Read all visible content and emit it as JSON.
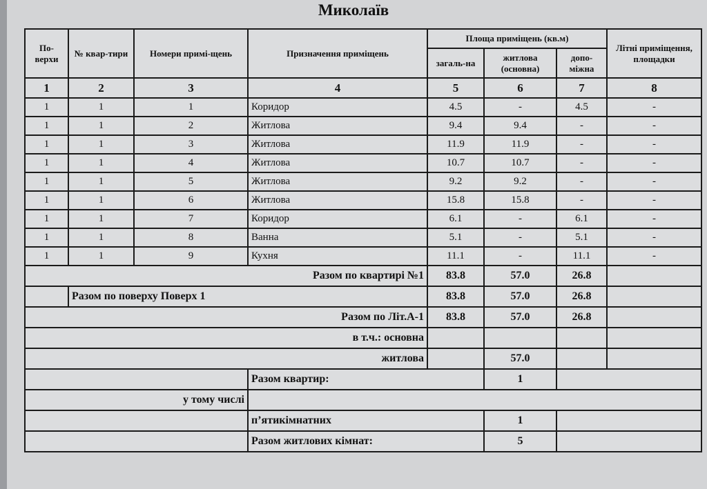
{
  "title": "Миколаїв",
  "headers": {
    "floor": "По-верхи",
    "apt": "№ квар-тири",
    "room_no": "Номери примі-щень",
    "purpose": "Призначення приміщень",
    "area_group": "Площа приміщень (кв.м)",
    "total": "загаль-на",
    "living": "житлова (основна)",
    "aux": "допо-міжна",
    "summer": "Літні приміщення, площадки"
  },
  "col_numbers": [
    "1",
    "2",
    "3",
    "4",
    "5",
    "6",
    "7",
    "8"
  ],
  "rows": [
    [
      "1",
      "1",
      "1",
      "Коридор",
      "4.5",
      "-",
      "4.5",
      "-"
    ],
    [
      "1",
      "1",
      "2",
      "Житлова",
      "9.4",
      "9.4",
      "-",
      "-"
    ],
    [
      "1",
      "1",
      "3",
      "Житлова",
      "11.9",
      "11.9",
      "-",
      "-"
    ],
    [
      "1",
      "1",
      "4",
      "Житлова",
      "10.7",
      "10.7",
      "-",
      "-"
    ],
    [
      "1",
      "1",
      "5",
      "Житлова",
      "9.2",
      "9.2",
      "-",
      "-"
    ],
    [
      "1",
      "1",
      "6",
      "Житлова",
      "15.8",
      "15.8",
      "-",
      "-"
    ],
    [
      "1",
      "1",
      "7",
      "Коридор",
      "6.1",
      "-",
      "6.1",
      "-"
    ],
    [
      "1",
      "1",
      "8",
      "Ванна",
      "5.1",
      "-",
      "5.1",
      "-"
    ],
    [
      "1",
      "1",
      "9",
      "Кухня",
      "11.1",
      "-",
      "11.1",
      "-"
    ]
  ],
  "totals": {
    "apt": {
      "label": "Разом по квартирі №1",
      "total": "83.8",
      "living": "57.0",
      "aux": "26.8"
    },
    "floor": {
      "label": "Разом по поверху Поверх 1",
      "total": "83.8",
      "living": "57.0",
      "aux": "26.8"
    },
    "lit": {
      "label": "Разом по Літ.А-1",
      "total": "83.8",
      "living": "57.0",
      "aux": "26.8"
    },
    "incl_main": {
      "label": "в т.ч.: основна"
    },
    "incl_living": {
      "label": "житлова",
      "living": "57.0"
    },
    "apartments": {
      "label": "Разом квартир:",
      "value": "1"
    },
    "including": {
      "label": "у тому числі"
    },
    "five_room": {
      "label": "п’ятикімнатних",
      "value": "1"
    },
    "living_rooms": {
      "label": "Разом житлових кімнат:",
      "value": "5"
    }
  }
}
